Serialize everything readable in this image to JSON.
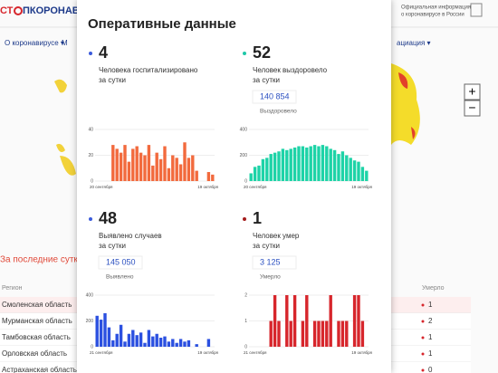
{
  "header": {
    "logo_left": "СТ",
    "logo_right": "ПКОРОНАВИРУС",
    "info": [
      "Официальная информация",
      "о коронавирусе в России"
    ]
  },
  "nav": [
    "О коронавирусе ▾",
    "М",
    "ациация ▾"
  ],
  "zoom": [
    "+",
    "−"
  ],
  "left_title": "За последние сутки",
  "table": {
    "headers": [
      "Регион",
      "Умерло"
    ],
    "rows": [
      [
        "Смоленская область",
        "1"
      ],
      [
        "Мурманская область",
        "2"
      ],
      [
        "Тамбовская область",
        "1"
      ],
      [
        "Орловская область",
        "1"
      ],
      [
        "Астраханская область",
        "0"
      ]
    ]
  },
  "modal": {
    "title": "Оперативные данные",
    "panels": [
      {
        "value": "4",
        "label": [
          "Человека госпитализировано",
          "за сутки"
        ],
        "color": "#f26a3d",
        "dot": "#3b5bdb",
        "ylim": [
          0,
          40
        ],
        "yticks": [
          0,
          20,
          40
        ],
        "dates": [
          "20 сентября",
          "19 октября"
        ],
        "values": [
          0,
          0,
          0,
          0,
          28,
          25,
          22,
          28,
          15,
          25,
          27,
          22,
          20,
          28,
          12,
          22,
          17,
          27,
          10,
          20,
          18,
          13,
          30,
          18,
          20,
          8,
          0,
          0,
          7,
          5
        ]
      },
      {
        "value": "52",
        "label": [
          "Человек выздоровело",
          "за сутки"
        ],
        "total": "140 854",
        "total_label": "Выздоровело",
        "color": "#1dd3a7",
        "dot": "#1fc8a8",
        "ylim": [
          0,
          400
        ],
        "yticks": [
          0,
          200,
          400
        ],
        "dates": [
          "20 сентября",
          "19 октября"
        ],
        "values": [
          60,
          110,
          120,
          170,
          180,
          210,
          220,
          230,
          250,
          240,
          250,
          260,
          270,
          270,
          260,
          270,
          280,
          270,
          280,
          270,
          250,
          240,
          210,
          230,
          200,
          180,
          160,
          150,
          110,
          80
        ]
      },
      {
        "value": "48",
        "label": [
          "Выявлено случаев",
          "за сутки"
        ],
        "total": "145 050",
        "total_label": "Выявлено",
        "color": "#2b50e0",
        "dot": "#3b5bdb",
        "ylim": [
          0,
          400
        ],
        "yticks": [
          0,
          200,
          400
        ],
        "dates": [
          "21 сентября",
          "19 октября"
        ],
        "values": [
          240,
          210,
          260,
          150,
          50,
          100,
          170,
          40,
          100,
          130,
          90,
          110,
          30,
          130,
          80,
          100,
          70,
          80,
          40,
          60,
          30,
          60,
          40,
          50,
          0,
          20,
          0,
          0,
          60,
          0
        ]
      },
      {
        "value": "1",
        "label": [
          "Человек умер",
          "за сутки"
        ],
        "total": "3 125",
        "total_label": "Умерло",
        "color": "#d7262c",
        "dot": "#a51c1c",
        "ylim": [
          0,
          2
        ],
        "yticks": [
          0,
          1,
          2
        ],
        "dates": [
          "21 сентября",
          "19 октября"
        ],
        "values": [
          0,
          0,
          0,
          0,
          0,
          1,
          2,
          1,
          0,
          2,
          1,
          2,
          0,
          1,
          2,
          0,
          1,
          1,
          1,
          1,
          2,
          0,
          1,
          1,
          1,
          0,
          2,
          2,
          1,
          0
        ]
      }
    ]
  }
}
